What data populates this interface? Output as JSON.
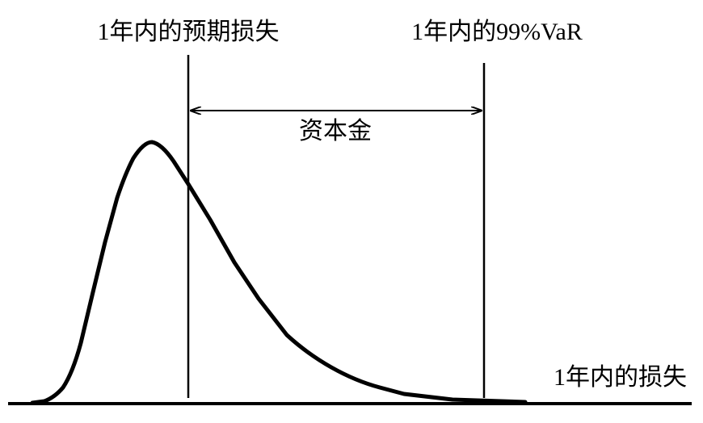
{
  "labels": {
    "expected_loss": "1年内的预期损失",
    "var": "1年内的99%VaR",
    "capital": "资本金",
    "x_axis": "1年内的损失"
  }
}
